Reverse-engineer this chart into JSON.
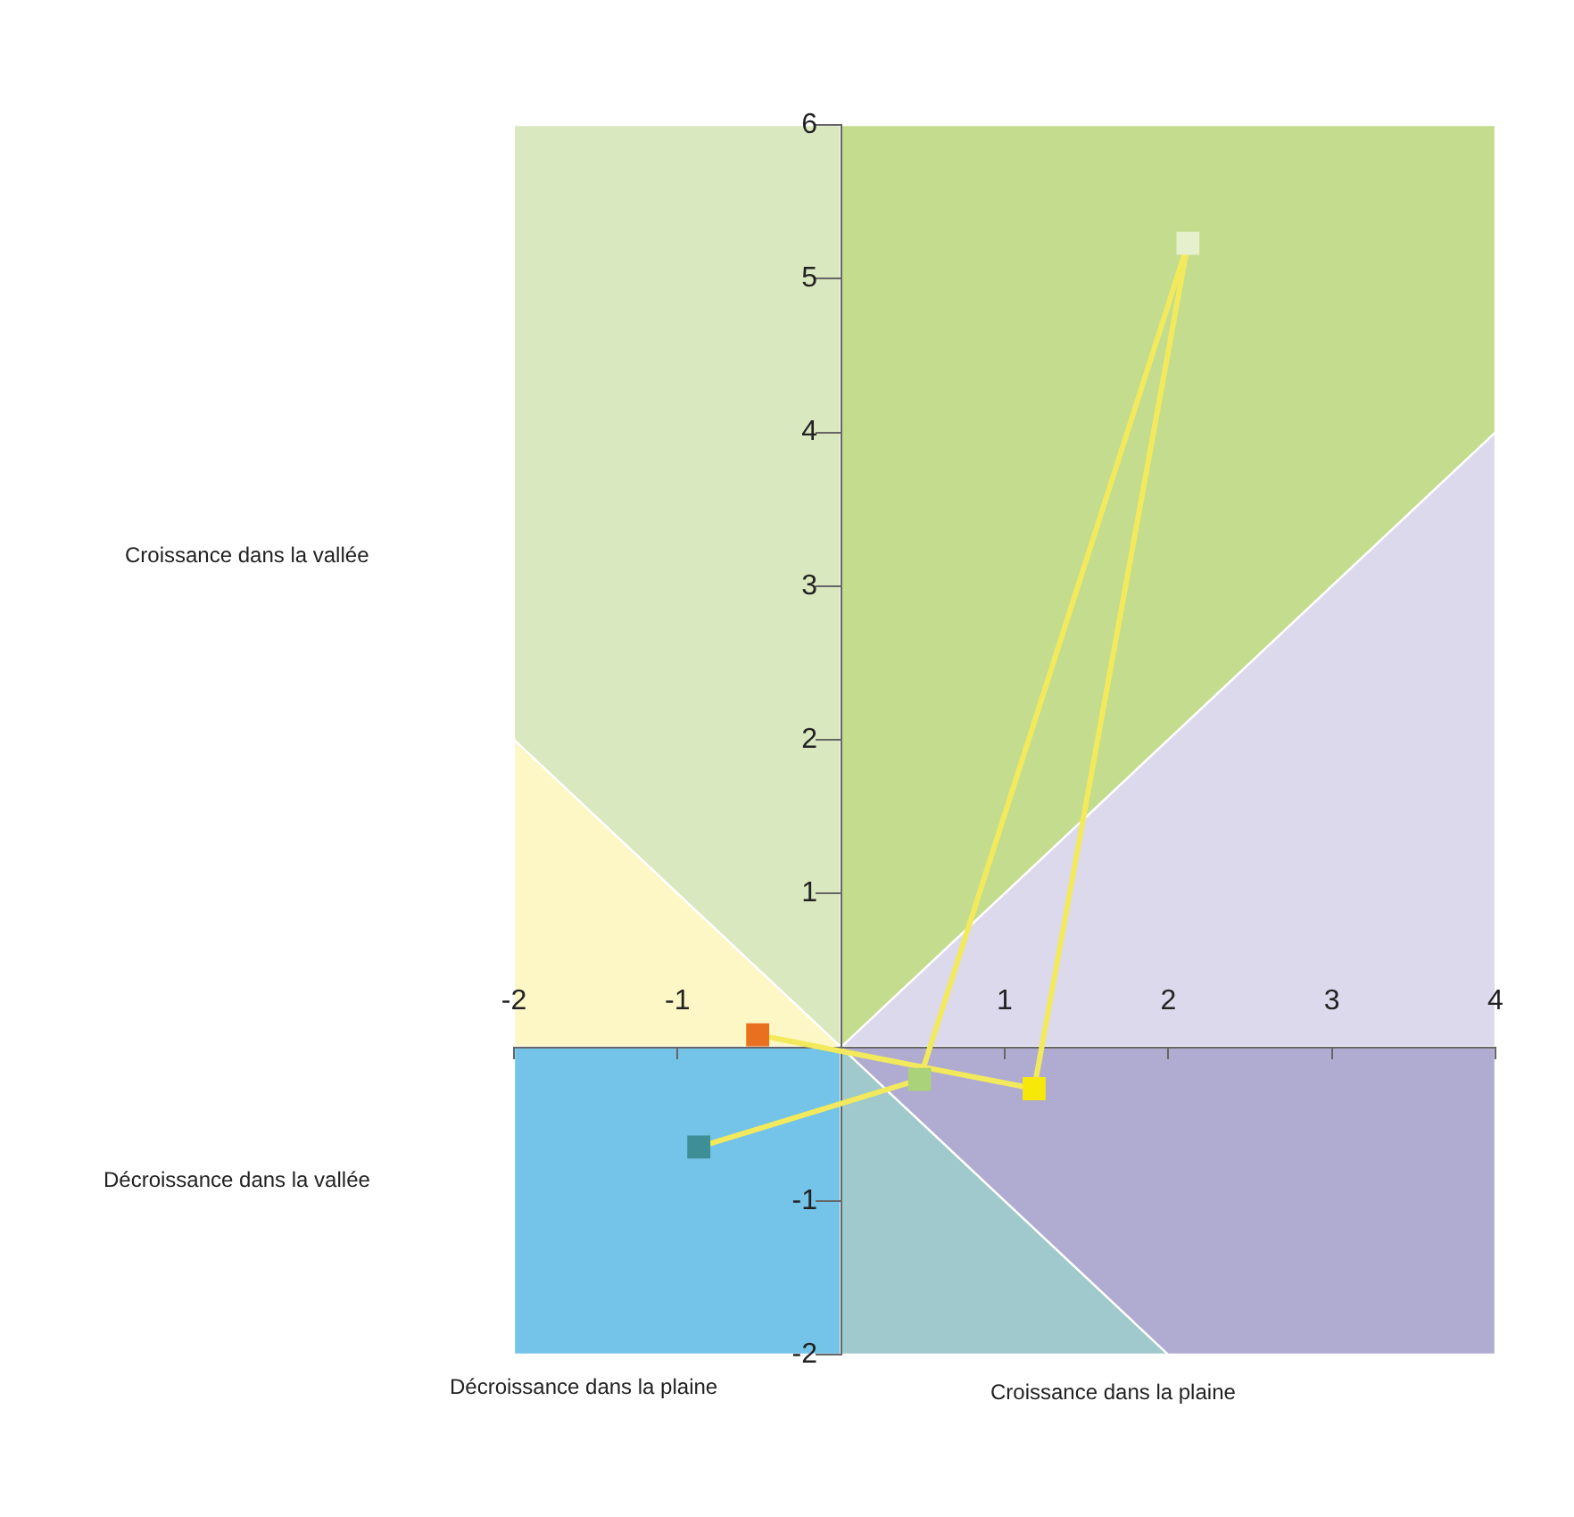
{
  "chart_data": {
    "type": "line",
    "x": [
      -0.51,
      1.18,
      2.12,
      0.48,
      -0.87
    ],
    "series": [
      {
        "color": "#f2ea5c",
        "values": [
          0.08,
          -0.27,
          5.23,
          -0.21,
          -0.65
        ],
        "colors": [
          "#e8701e",
          "#f7e80a",
          "#e6f0cc",
          "#a9d27a",
          "#3d8f95"
        ]
      }
    ],
    "xlim": [
      -2,
      4
    ],
    "xticks": [
      -2,
      -1,
      1,
      2,
      3,
      4
    ],
    "ylim": [
      -2,
      6
    ],
    "yticks": [
      -2,
      -1,
      1,
      2,
      3,
      4,
      5,
      6
    ],
    "grid": false,
    "legend": false,
    "marker": "square",
    "line_style": "solid",
    "annotations": [
      "Croissance dans la vallée",
      "Décroissance dans la vallée",
      "Décroissance dans la plaine",
      "Croissance dans la plaine"
    ]
  }
}
